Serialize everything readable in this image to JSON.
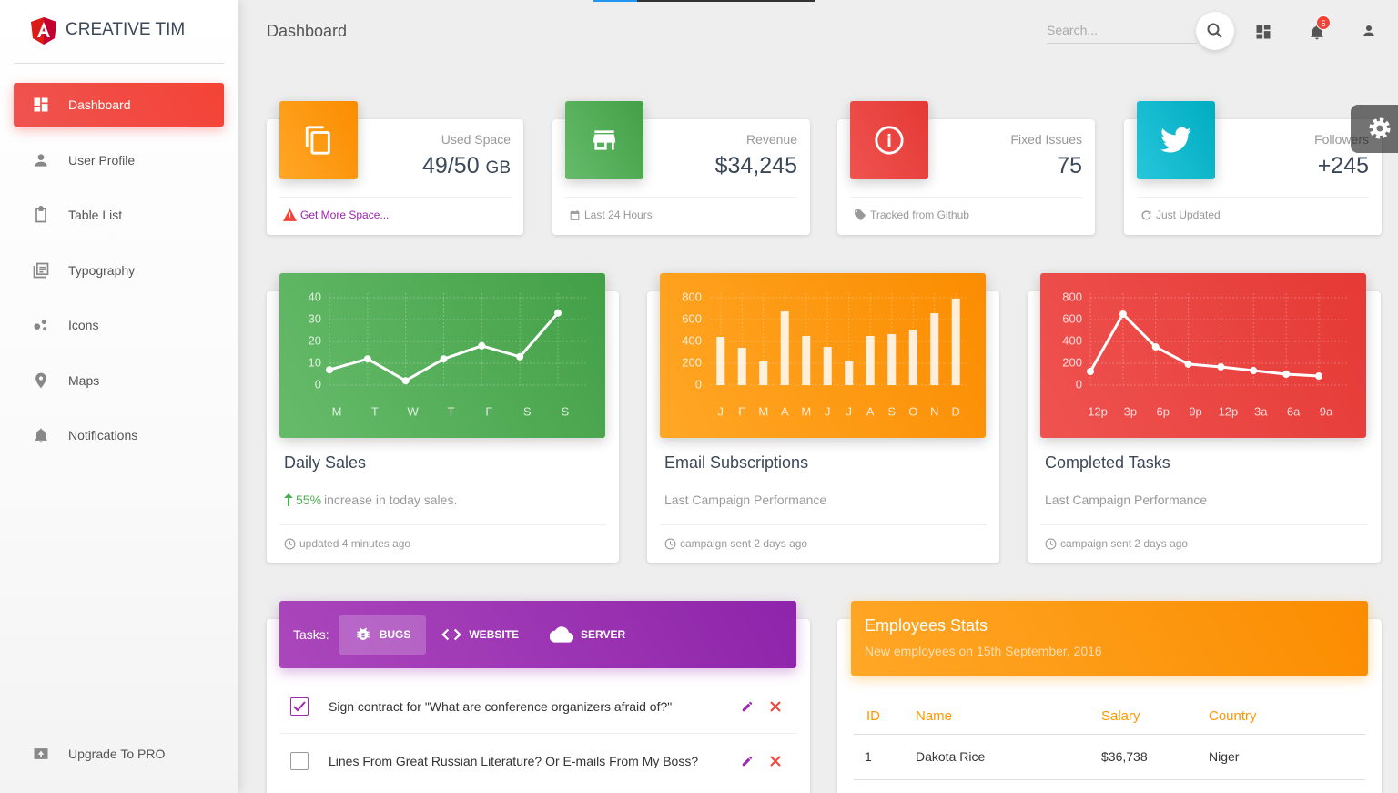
{
  "brand": "CREATIVE TIM",
  "nav": [
    "Dashboard",
    "User Profile",
    "Table List",
    "Typography",
    "Icons",
    "Maps",
    "Notifications"
  ],
  "upgrade": "Upgrade To PRO",
  "header": {
    "title": "Dashboard",
    "search_placeholder": "Search...",
    "notification_count": 5
  },
  "stats": [
    {
      "label": "Used Space",
      "value": "49/50",
      "unit": "GB",
      "footer": "Get More Space..."
    },
    {
      "label": "Revenue",
      "value": "$34,245",
      "footer": "Last 24 Hours"
    },
    {
      "label": "Fixed Issues",
      "value": "75",
      "footer": "Tracked from Github"
    },
    {
      "label": "Followers",
      "value": "+245",
      "footer": "Just Updated"
    }
  ],
  "charts": [
    {
      "type": "line",
      "title": "Daily Sales",
      "change": "55%",
      "subtitle": "increase in today sales.",
      "footer": "updated 4 minutes ago",
      "categories": [
        "M",
        "T",
        "W",
        "T",
        "F",
        "S",
        "S"
      ],
      "values": [
        7,
        12,
        2,
        12,
        18,
        13,
        33
      ],
      "ylim": [
        0,
        40
      ],
      "yticks": [
        0,
        10,
        20,
        30,
        40
      ],
      "color": "#ffffff",
      "grid": true
    },
    {
      "type": "bar",
      "title": "Email Subscriptions",
      "subtitle": "Last Campaign Performance",
      "footer": "campaign sent 2 days ago",
      "categories": [
        "J",
        "F",
        "M",
        "A",
        "M",
        "J",
        "J",
        "A",
        "S",
        "O",
        "N",
        "D"
      ],
      "values": [
        442,
        342,
        217,
        675,
        450,
        350,
        217,
        450,
        467,
        508,
        658,
        792
      ],
      "ylim": [
        0,
        800
      ],
      "yticks": [
        0,
        200,
        400,
        600,
        800
      ],
      "color": "#ffffff",
      "grid": true
    },
    {
      "type": "line",
      "title": "Completed Tasks",
      "subtitle": "Last Campaign Performance",
      "footer": "campaign sent 2 days ago",
      "categories": [
        "12p",
        "3p",
        "6p",
        "9p",
        "12p",
        "3a",
        "6a",
        "9a"
      ],
      "values": [
        125,
        650,
        350,
        192,
        167,
        133,
        100,
        83
      ],
      "ylim": [
        0,
        800
      ],
      "yticks": [
        0,
        200,
        400,
        600,
        800
      ],
      "color": "#ffffff",
      "grid": true
    }
  ],
  "tasks": {
    "label": "Tasks:",
    "tabs": [
      "BUGS",
      "WEBSITE",
      "SERVER"
    ],
    "items": [
      {
        "text": "Sign contract for \"What are conference organizers afraid of?\"",
        "checked": true
      },
      {
        "text": "Lines From Great Russian Literature? Or E-mails From My Boss?",
        "checked": false
      }
    ]
  },
  "employees": {
    "title": "Employees Stats",
    "subtitle": "New employees on 15th September, 2016",
    "columns": [
      "ID",
      "Name",
      "Salary",
      "Country"
    ],
    "rows": [
      [
        "1",
        "Dakota Rice",
        "$36,738",
        "Niger"
      ]
    ]
  }
}
